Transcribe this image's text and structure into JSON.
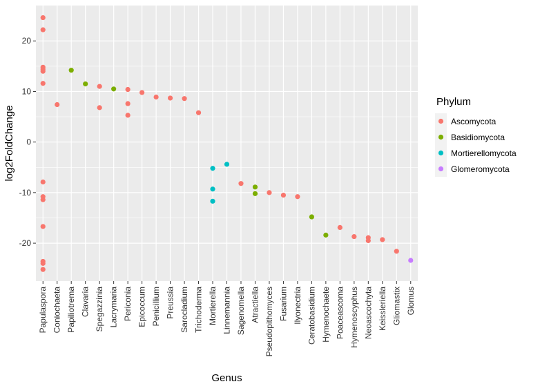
{
  "chart_data": {
    "type": "scatter",
    "title": "",
    "xlabel": "Genus",
    "ylabel": "log2FoldChange",
    "ylim": [
      -27.5,
      27
    ],
    "yticks": [
      -20,
      -10,
      0,
      10,
      20
    ],
    "grid": true,
    "legend_position": "right",
    "categories": [
      "Papulaspora",
      "Coniochaeta",
      "Papiliotrema",
      "Clavaria",
      "Spegazzinia",
      "Lacrymaria",
      "Periconia",
      "Epicoccum",
      "Penicillium",
      "Preussia",
      "Sarocladium",
      "Trichoderma",
      "Mortierella",
      "Linnemannia",
      "Sagenomella",
      "Atractiella",
      "Pseudopithomyces",
      "Fusarium",
      "Ilyonectria",
      "Ceratobasidium",
      "Hymenochaete",
      "Poaceascoma",
      "Hymenoscyphus",
      "Neoascochyta",
      "Keissleriella",
      "Gliomastix",
      "Glomus"
    ],
    "legend": {
      "title": "Phylum",
      "entries": [
        {
          "name": "Ascomycota",
          "color": "#F8766D"
        },
        {
          "name": "Basidiomycota",
          "color": "#7CAE00"
        },
        {
          "name": "Mortierellomycota",
          "color": "#00BFC4"
        },
        {
          "name": "Glomeromycota",
          "color": "#C77CFF"
        }
      ]
    },
    "series": [
      {
        "name": "Ascomycota",
        "color": "#F8766D",
        "points": [
          {
            "x": "Papulaspora",
            "y": 24.6
          },
          {
            "x": "Papulaspora",
            "y": 22.2
          },
          {
            "x": "Papulaspora",
            "y": 14.8
          },
          {
            "x": "Papulaspora",
            "y": 14.4
          },
          {
            "x": "Papulaspora",
            "y": 14.0
          },
          {
            "x": "Papulaspora",
            "y": 11.6
          },
          {
            "x": "Papulaspora",
            "y": -7.9
          },
          {
            "x": "Papulaspora",
            "y": -10.8
          },
          {
            "x": "Papulaspora",
            "y": -11.4
          },
          {
            "x": "Papulaspora",
            "y": -16.7
          },
          {
            "x": "Papulaspora",
            "y": -23.6
          },
          {
            "x": "Papulaspora",
            "y": -24.0
          },
          {
            "x": "Papulaspora",
            "y": -25.2
          },
          {
            "x": "Coniochaeta",
            "y": 7.4
          },
          {
            "x": "Spegazzinia",
            "y": 11.0
          },
          {
            "x": "Spegazzinia",
            "y": 6.8
          },
          {
            "x": "Periconia",
            "y": 10.4
          },
          {
            "x": "Periconia",
            "y": 7.6
          },
          {
            "x": "Periconia",
            "y": 5.3
          },
          {
            "x": "Epicoccum",
            "y": 9.8
          },
          {
            "x": "Penicillium",
            "y": 8.9
          },
          {
            "x": "Preussia",
            "y": 8.7
          },
          {
            "x": "Sarocladium",
            "y": 8.6
          },
          {
            "x": "Trichoderma",
            "y": 5.8
          },
          {
            "x": "Sagenomella",
            "y": -8.2
          },
          {
            "x": "Pseudopithomyces",
            "y": -10.0
          },
          {
            "x": "Fusarium",
            "y": -10.5
          },
          {
            "x": "Ilyonectria",
            "y": -10.8
          },
          {
            "x": "Poaceascoma",
            "y": -16.9
          },
          {
            "x": "Hymenoscyphus",
            "y": -18.7
          },
          {
            "x": "Neoascochyta",
            "y": -18.9
          },
          {
            "x": "Neoascochyta",
            "y": -19.5
          },
          {
            "x": "Keissleriella",
            "y": -19.3
          },
          {
            "x": "Gliomastix",
            "y": -21.6
          }
        ]
      },
      {
        "name": "Basidiomycota",
        "color": "#7CAE00",
        "points": [
          {
            "x": "Papiliotrema",
            "y": 14.2
          },
          {
            "x": "Clavaria",
            "y": 11.5
          },
          {
            "x": "Lacrymaria",
            "y": 10.5
          },
          {
            "x": "Atractiella",
            "y": -8.9
          },
          {
            "x": "Atractiella",
            "y": -10.2
          },
          {
            "x": "Ceratobasidium",
            "y": -14.8
          },
          {
            "x": "Hymenochaete",
            "y": -18.4
          }
        ]
      },
      {
        "name": "Mortierellomycota",
        "color": "#00BFC4",
        "points": [
          {
            "x": "Mortierella",
            "y": -5.2
          },
          {
            "x": "Mortierella",
            "y": -9.3
          },
          {
            "x": "Mortierella",
            "y": -11.7
          },
          {
            "x": "Linnemannia",
            "y": -4.4
          }
        ]
      },
      {
        "name": "Glomeromycota",
        "color": "#C77CFF",
        "points": [
          {
            "x": "Glomus",
            "y": -23.4
          }
        ]
      }
    ]
  }
}
